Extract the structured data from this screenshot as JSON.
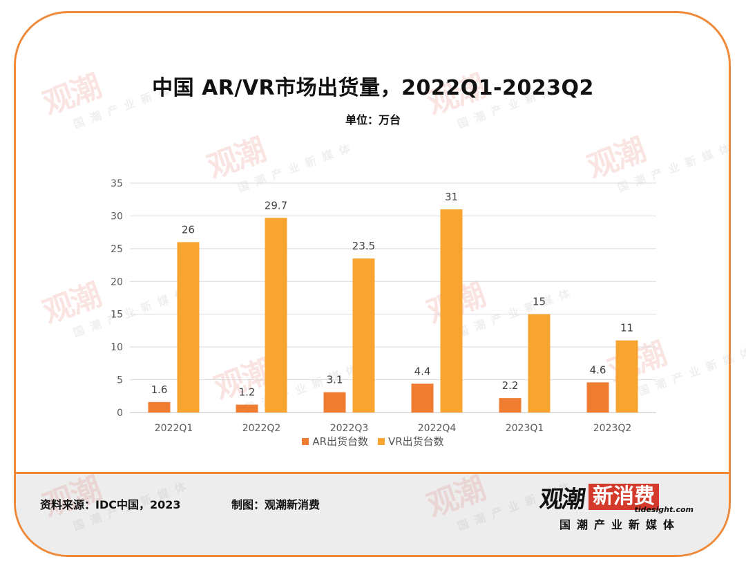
{
  "header": {
    "title": "中国 AR/VR市场出货量，2022Q1-2023Q2",
    "unit": "单位：万台"
  },
  "chart_data": {
    "type": "bar",
    "categories": [
      "2022Q1",
      "2022Q2",
      "2022Q3",
      "2022Q4",
      "2023Q1",
      "2023Q2"
    ],
    "series": [
      {
        "name": "AR出货台数",
        "values": [
          1.6,
          1.2,
          3.1,
          4.4,
          2.2,
          4.6
        ],
        "color": "#ee7d31"
      },
      {
        "name": "VR出货台数",
        "values": [
          26,
          29.7,
          23.5,
          31,
          15,
          11
        ],
        "color": "#f8a431"
      }
    ],
    "yticks": [
      0,
      5,
      10,
      15,
      20,
      25,
      30,
      35
    ],
    "ylim": [
      0,
      35
    ],
    "grid": true,
    "legend": "bottom-center",
    "data_labels": true
  },
  "footer": {
    "source": "资料来源：IDC中国，2023",
    "maker": "制图：观潮新消费"
  },
  "logo": {
    "main_a": "观潮",
    "main_b": "新消费",
    "domain": "tidesight.com",
    "sub": "国潮产业新媒体"
  },
  "colors": {
    "border": "#ee8a3a",
    "footer_bg": "#ededed",
    "grid": "#d9d9d9",
    "axis_text": "#595959",
    "logo_red": "#d43a2c"
  }
}
